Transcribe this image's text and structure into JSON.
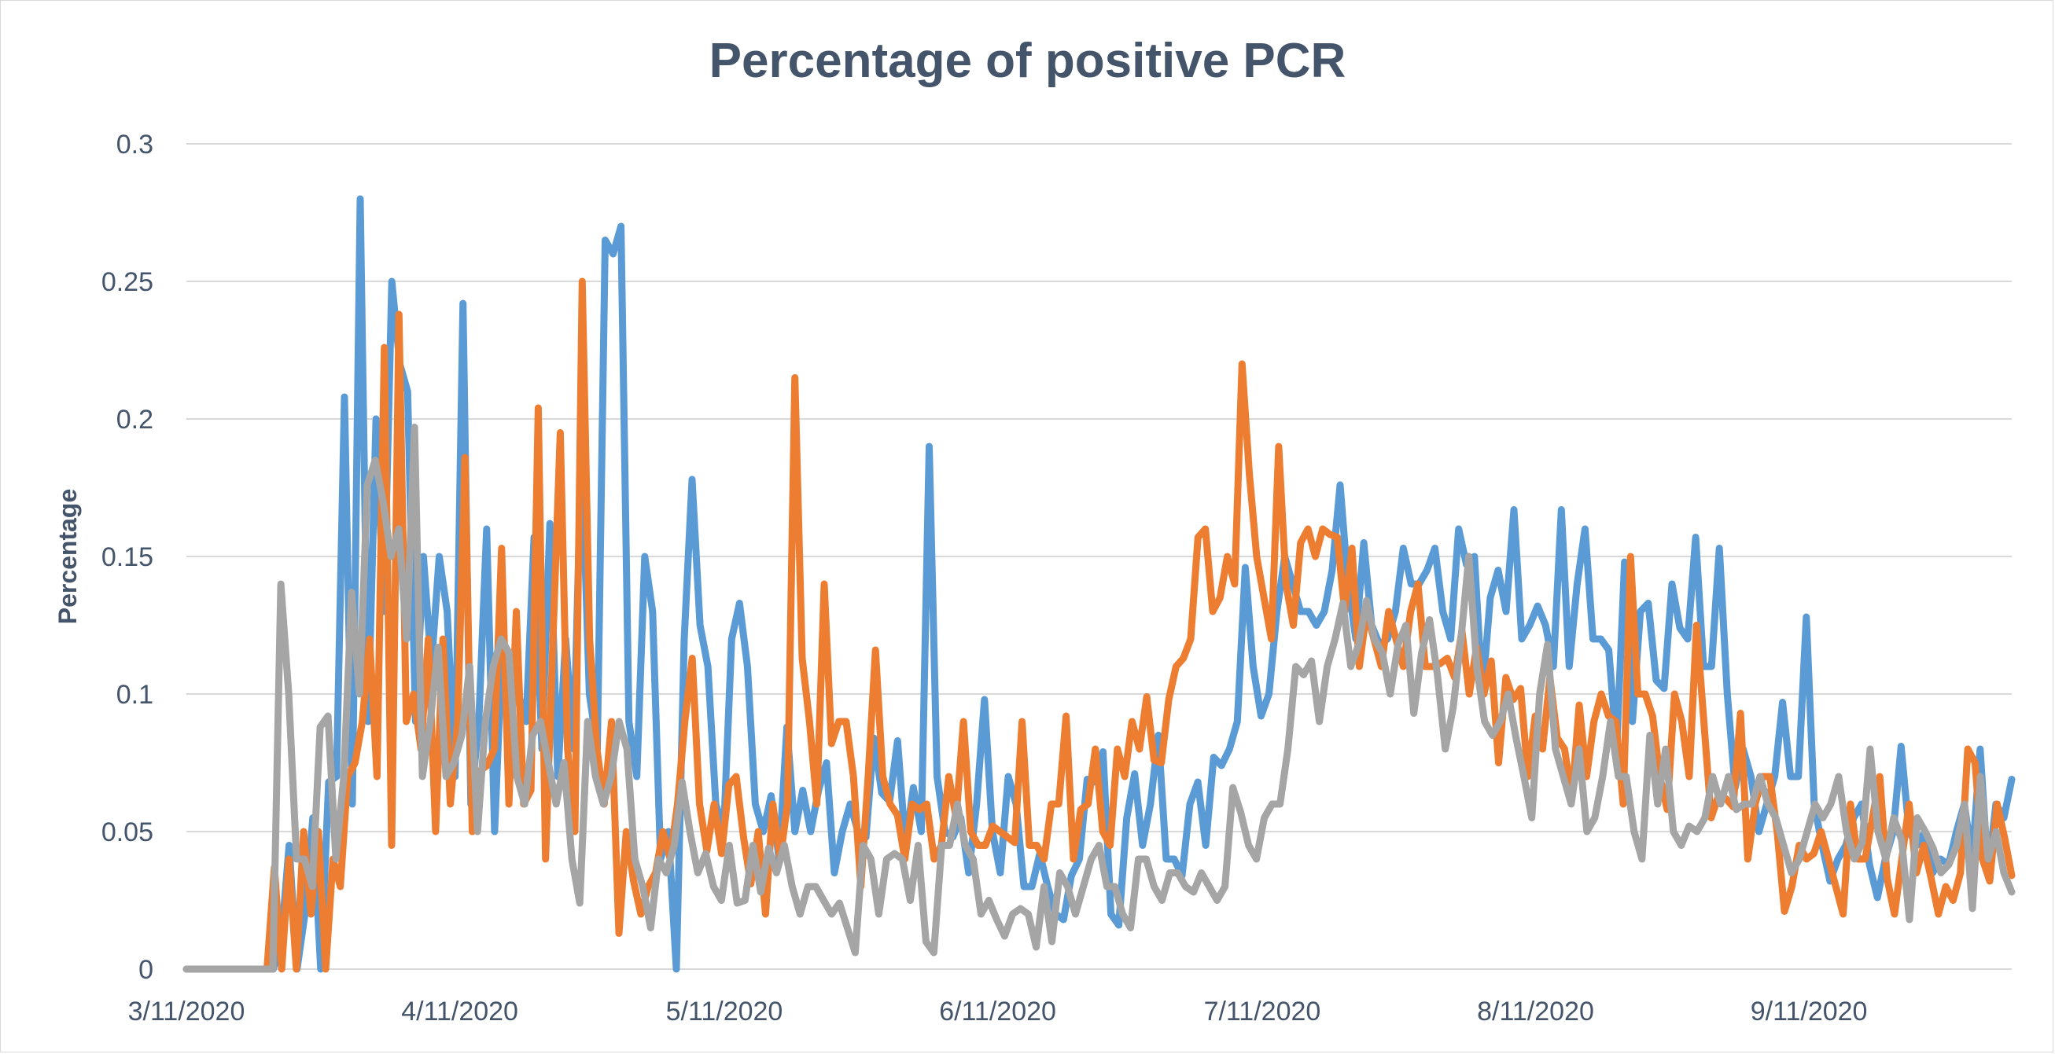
{
  "chart_data": {
    "type": "line",
    "title": "Percentage of positive PCR",
    "xlabel": "",
    "ylabel": "Percentage",
    "ylim": [
      0,
      0.3
    ],
    "y_ticks": [
      "0",
      "0.05",
      "0.1",
      "0.15",
      "0.2",
      "0.25",
      "0.3"
    ],
    "y_tick_values": [
      0,
      0.05,
      0.1,
      0.15,
      0.2,
      0.25,
      0.3
    ],
    "x_ticks": [
      "3/11/2020",
      "4/11/2020",
      "5/11/2020",
      "6/11/2020",
      "7/11/2020",
      "8/11/2020",
      "9/11/2020"
    ],
    "x_start": "3/11/2020",
    "x_end": "10/4/2020",
    "grid": true,
    "legend": "none",
    "colors": [
      "#5b9bd5",
      "#ed7d31",
      "#a5a5a5"
    ],
    "series": [
      {
        "values": [
          0,
          0,
          0,
          0,
          0,
          0,
          0,
          0,
          0,
          0,
          0,
          0,
          0.01,
          0.045,
          0,
          0.02,
          0.055,
          0,
          0.068,
          0.07,
          0.208,
          0.06,
          0.28,
          0.09,
          0.2,
          0.13,
          0.25,
          0.22,
          0.21,
          0.09,
          0.15,
          0.11,
          0.15,
          0.13,
          0.07,
          0.242,
          0.06,
          0.09,
          0.16,
          0.05,
          0.12,
          0.11,
          0.1,
          0.09,
          0.157,
          0.08,
          0.162,
          0.07,
          0.12,
          0.08,
          0.19,
          0.1,
          0.08,
          0.265,
          0.26,
          0.27,
          0.09,
          0.07,
          0.15,
          0.13,
          0.04,
          0.05,
          0,
          0.12,
          0.178,
          0.125,
          0.11,
          0.06,
          0.05,
          0.12,
          0.133,
          0.11,
          0.06,
          0.05,
          0.063,
          0.04,
          0.088,
          0.05,
          0.065,
          0.05,
          0.065,
          0.075,
          0.035,
          0.05,
          0.06,
          0.05,
          0.048,
          0.084,
          0.064,
          0.061,
          0.083,
          0.045,
          0.066,
          0.05,
          0.19,
          0.07,
          0.05,
          0.048,
          0.055,
          0.035,
          0.06,
          0.098,
          0.05,
          0.035,
          0.07,
          0.06,
          0.03,
          0.03,
          0.042,
          0.03,
          0.02,
          0.018,
          0.034,
          0.04,
          0.069,
          0.068,
          0.079,
          0.02,
          0.016,
          0.055,
          0.071,
          0.045,
          0.06,
          0.085,
          0.04,
          0.04,
          0.034,
          0.06,
          0.068,
          0.045,
          0.077,
          0.074,
          0.08,
          0.09,
          0.146,
          0.11,
          0.092,
          0.1,
          0.13,
          0.15,
          0.14,
          0.13,
          0.13,
          0.125,
          0.13,
          0.145,
          0.176,
          0.14,
          0.12,
          0.155,
          0.125,
          0.118,
          0.12,
          0.13,
          0.153,
          0.14,
          0.14,
          0.145,
          0.153,
          0.13,
          0.12,
          0.16,
          0.147,
          0.15,
          0.1,
          0.135,
          0.145,
          0.13,
          0.167,
          0.12,
          0.125,
          0.132,
          0.125,
          0.11,
          0.167,
          0.11,
          0.14,
          0.16,
          0.12,
          0.12,
          0.116,
          0.08,
          0.148,
          0.09,
          0.13,
          0.133,
          0.105,
          0.102,
          0.14,
          0.124,
          0.12,
          0.157,
          0.11,
          0.11,
          0.153,
          0.1,
          0.066,
          0.08,
          0.07,
          0.05,
          0.06,
          0.07,
          0.097,
          0.07,
          0.07,
          0.128,
          0.06,
          0.045,
          0.032,
          0.04,
          0.045,
          0.055,
          0.06,
          0.038,
          0.026,
          0.04,
          0.05,
          0.081,
          0.05,
          0.045,
          0.05,
          0.035,
          0.04,
          0.038,
          0.05,
          0.06,
          0.04,
          0.08,
          0.035,
          0.06,
          0.055,
          0.069
        ]
      },
      {
        "values": [
          0,
          0,
          0,
          0,
          0,
          0,
          0,
          0,
          0,
          0,
          0,
          0,
          0.037,
          0,
          0.04,
          0,
          0.05,
          0.02,
          0.05,
          0,
          0.04,
          0.03,
          0.07,
          0.075,
          0.09,
          0.12,
          0.07,
          0.226,
          0.045,
          0.238,
          0.09,
          0.1,
          0.08,
          0.12,
          0.05,
          0.12,
          0.06,
          0.09,
          0.186,
          0.05,
          0.072,
          0.074,
          0.08,
          0.153,
          0.06,
          0.13,
          0.06,
          0.065,
          0.204,
          0.04,
          0.12,
          0.195,
          0.08,
          0.05,
          0.25,
          0.12,
          0.08,
          0.06,
          0.09,
          0.013,
          0.05,
          0.032,
          0.02,
          0.03,
          0.035,
          0.05,
          0.04,
          0.06,
          0.09,
          0.113,
          0.06,
          0.043,
          0.06,
          0.042,
          0.067,
          0.07,
          0.048,
          0.031,
          0.05,
          0.02,
          0.06,
          0.04,
          0.06,
          0.215,
          0.113,
          0.09,
          0.06,
          0.14,
          0.082,
          0.09,
          0.09,
          0.07,
          0.03,
          0.07,
          0.116,
          0.07,
          0.06,
          0.056,
          0.04,
          0.06,
          0.058,
          0.06,
          0.04,
          0.045,
          0.07,
          0.055,
          0.09,
          0.05,
          0.045,
          0.045,
          0.052,
          0.05,
          0.048,
          0.046,
          0.09,
          0.045,
          0.045,
          0.04,
          0.06,
          0.06,
          0.092,
          0.04,
          0.058,
          0.06,
          0.08,
          0.05,
          0.045,
          0.08,
          0.07,
          0.09,
          0.08,
          0.099,
          0.076,
          0.075,
          0.098,
          0.11,
          0.113,
          0.12,
          0.157,
          0.16,
          0.13,
          0.135,
          0.15,
          0.14,
          0.22,
          0.18,
          0.15,
          0.135,
          0.12,
          0.19,
          0.14,
          0.125,
          0.155,
          0.16,
          0.15,
          0.16,
          0.158,
          0.157,
          0.13,
          0.153,
          0.11,
          0.13,
          0.12,
          0.11,
          0.13,
          0.12,
          0.11,
          0.13,
          0.14,
          0.11,
          0.11,
          0.111,
          0.113,
          0.106,
          0.123,
          0.1,
          0.117,
          0.1,
          0.112,
          0.075,
          0.106,
          0.098,
          0.102,
          0.07,
          0.092,
          0.08,
          0.106,
          0.084,
          0.08,
          0.062,
          0.096,
          0.07,
          0.09,
          0.1,
          0.092,
          0.09,
          0.06,
          0.15,
          0.1,
          0.1,
          0.092,
          0.07,
          0.058,
          0.1,
          0.09,
          0.07,
          0.125,
          0.09,
          0.055,
          0.063,
          0.062,
          0.059,
          0.093,
          0.04,
          0.06,
          0.07,
          0.07,
          0.05,
          0.021,
          0.03,
          0.045,
          0.04,
          0.042,
          0.05,
          0.04,
          0.03,
          0.02,
          0.06,
          0.04,
          0.04,
          0.055,
          0.07,
          0.033,
          0.02,
          0.04,
          0.06,
          0.035,
          0.045,
          0.033,
          0.02,
          0.03,
          0.025,
          0.035,
          0.08,
          0.075,
          0.04,
          0.032,
          0.06,
          0.048,
          0.034
        ]
      },
      {
        "values": [
          0,
          0,
          0,
          0,
          0,
          0,
          0,
          0,
          0,
          0,
          0,
          0,
          0.14,
          0.1,
          0.04,
          0.04,
          0.03,
          0.088,
          0.092,
          0.04,
          0.07,
          0.137,
          0.1,
          0.176,
          0.185,
          0.17,
          0.15,
          0.16,
          0.12,
          0.197,
          0.07,
          0.09,
          0.117,
          0.07,
          0.075,
          0.085,
          0.11,
          0.05,
          0.09,
          0.11,
          0.12,
          0.115,
          0.07,
          0.06,
          0.085,
          0.09,
          0.075,
          0.06,
          0.075,
          0.04,
          0.024,
          0.09,
          0.07,
          0.06,
          0.07,
          0.09,
          0.08,
          0.04,
          0.03,
          0.015,
          0.04,
          0.035,
          0.045,
          0.068,
          0.05,
          0.035,
          0.042,
          0.03,
          0.025,
          0.045,
          0.024,
          0.025,
          0.045,
          0.028,
          0.044,
          0.035,
          0.045,
          0.03,
          0.02,
          0.03,
          0.03,
          0.025,
          0.02,
          0.024,
          0.015,
          0.006,
          0.045,
          0.04,
          0.02,
          0.04,
          0.042,
          0.04,
          0.025,
          0.045,
          0.01,
          0.006,
          0.045,
          0.045,
          0.06,
          0.045,
          0.04,
          0.02,
          0.025,
          0.018,
          0.012,
          0.02,
          0.022,
          0.02,
          0.008,
          0.03,
          0.01,
          0.035,
          0.03,
          0.02,
          0.03,
          0.04,
          0.045,
          0.03,
          0.03,
          0.02,
          0.015,
          0.04,
          0.04,
          0.03,
          0.025,
          0.035,
          0.035,
          0.03,
          0.028,
          0.035,
          0.03,
          0.025,
          0.03,
          0.066,
          0.057,
          0.045,
          0.04,
          0.055,
          0.06,
          0.06,
          0.08,
          0.11,
          0.107,
          0.112,
          0.09,
          0.11,
          0.12,
          0.133,
          0.11,
          0.118,
          0.134,
          0.12,
          0.115,
          0.1,
          0.118,
          0.125,
          0.093,
          0.115,
          0.127,
          0.107,
          0.08,
          0.095,
          0.12,
          0.15,
          0.11,
          0.09,
          0.085,
          0.09,
          0.1,
          0.084,
          0.07,
          0.055,
          0.1,
          0.118,
          0.08,
          0.07,
          0.06,
          0.08,
          0.05,
          0.055,
          0.07,
          0.09,
          0.07,
          0.07,
          0.05,
          0.04,
          0.085,
          0.06,
          0.08,
          0.05,
          0.045,
          0.052,
          0.05,
          0.055,
          0.07,
          0.06,
          0.07,
          0.058,
          0.06,
          0.06,
          0.07,
          0.06,
          0.055,
          0.045,
          0.035,
          0.04,
          0.05,
          0.06,
          0.055,
          0.06,
          0.07,
          0.05,
          0.04,
          0.046,
          0.08,
          0.05,
          0.04,
          0.055,
          0.047,
          0.018,
          0.055,
          0.05,
          0.044,
          0.035,
          0.038,
          0.045,
          0.06,
          0.022,
          0.07,
          0.04,
          0.05,
          0.035,
          0.028
        ]
      }
    ]
  }
}
